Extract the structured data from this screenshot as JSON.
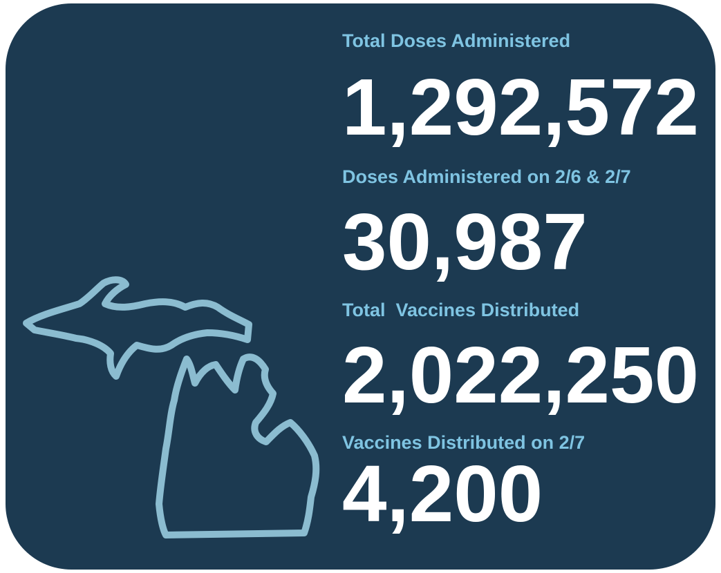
{
  "stats": [
    {
      "label": "Total Doses Administered",
      "value": "1,292,572"
    },
    {
      "label": "Doses Administered on 2/6 & 2/7",
      "value": "30,987"
    },
    {
      "label": "Total  Vaccines Distributed",
      "value": "2,022,250"
    },
    {
      "label": "Vaccines Distributed on 2/7",
      "value": "4,200"
    }
  ]
}
